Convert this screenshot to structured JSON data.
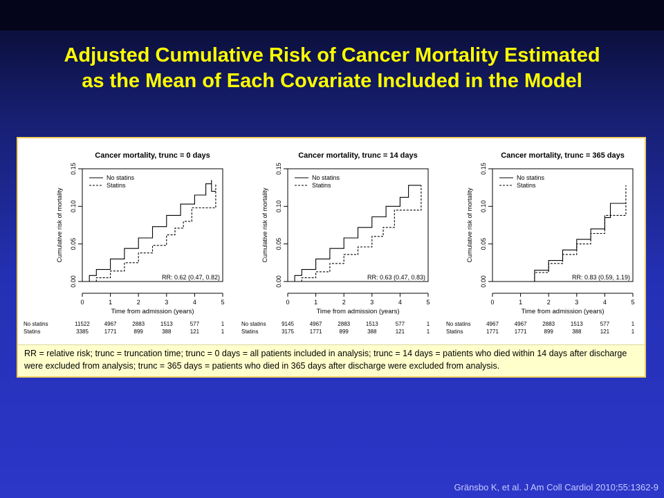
{
  "slide": {
    "title_line1": "Adjusted Cumulative Risk of Cancer Mortality Estimated",
    "title_line2": "as the Mean of Each Covariate Included in the Model",
    "footnote": "RR = relative risk; trunc = truncation time; trunc = 0 days = all patients included in analysis; trunc = 14 days = patients who died within 14 days after discharge were excluded from analysis; trunc = 365 days = patients who died in 365 days after discharge were excluded from analysis.",
    "citation": "Gränsbo K, et al. J Am Coll Cardiol 2010;55:1362-9",
    "colors": {
      "title": "#ffff00",
      "panel_border": "#f0d060",
      "footnote_bg": "#ffffcc"
    }
  },
  "chart_data": [
    {
      "type": "line",
      "title": "Cancer mortality, trunc = 0 days",
      "xlabel": "Time from admission (years)",
      "ylabel": "Cumulative risk of mortality",
      "xlim": [
        0,
        5
      ],
      "ylim": [
        0,
        0.15
      ],
      "xticks": [
        "0",
        "1",
        "2",
        "3",
        "4",
        "5"
      ],
      "yticks": [
        "0.00",
        "0.05",
        "0.10",
        "0.15"
      ],
      "legend": {
        "position": "top-left",
        "entries": [
          "No statins",
          "Statins"
        ]
      },
      "annotation": "RR: 0.62 (0.47, 0.82)",
      "series": [
        {
          "name": "No statins",
          "style": "solid",
          "x": [
            0,
            0.25,
            0.5,
            1,
            1.5,
            2,
            2.5,
            3,
            3.5,
            4,
            4.4,
            4.6,
            4.6,
            4.75
          ],
          "y": [
            0,
            0.008,
            0.016,
            0.03,
            0.044,
            0.058,
            0.073,
            0.088,
            0.103,
            0.115,
            0.13,
            0.135,
            0.12,
            0.12
          ]
        },
        {
          "name": "Statins",
          "style": "dashed",
          "x": [
            0,
            0.5,
            1,
            1.5,
            2,
            2.5,
            3,
            3.3,
            3.6,
            3.9,
            4.6,
            4.75,
            4.75
          ],
          "y": [
            0,
            0.005,
            0.014,
            0.025,
            0.038,
            0.048,
            0.062,
            0.071,
            0.08,
            0.098,
            0.098,
            0.098,
            0.13
          ]
        }
      ],
      "risk_table": {
        "rows": [
          {
            "label": "No statins",
            "values": [
              "11522",
              "4967",
              "2883",
              "1513",
              "577",
              "1"
            ]
          },
          {
            "label": "Statins",
            "values": [
              "3385",
              "1771",
              "899",
              "388",
              "121",
              "1"
            ]
          }
        ]
      }
    },
    {
      "type": "line",
      "title": "Cancer mortality, trunc = 14 days",
      "xlabel": "Time from admission (years)",
      "ylabel": "Cumulative risk of mortality",
      "xlim": [
        0,
        5
      ],
      "ylim": [
        0,
        0.15
      ],
      "xticks": [
        "0",
        "1",
        "2",
        "3",
        "4",
        "5"
      ],
      "yticks": [
        "0.00",
        "0.05",
        "0.10",
        "0.15"
      ],
      "legend": {
        "position": "top-left",
        "entries": [
          "No statins",
          "Statins"
        ]
      },
      "annotation": "RR: 0.63 (0.47, 0.83)",
      "series": [
        {
          "name": "No statins",
          "style": "solid",
          "x": [
            0,
            0.25,
            0.5,
            1,
            1.5,
            2,
            2.5,
            3,
            3.5,
            4,
            4.3,
            4.6,
            4.75
          ],
          "y": [
            0,
            0.008,
            0.016,
            0.03,
            0.044,
            0.058,
            0.072,
            0.086,
            0.1,
            0.112,
            0.128,
            0.128,
            0.128
          ]
        },
        {
          "name": "Statins",
          "style": "dashed",
          "x": [
            0,
            0.5,
            1,
            1.5,
            2,
            2.5,
            3,
            3.4,
            3.8,
            4.5,
            4.75,
            4.75
          ],
          "y": [
            0,
            0.005,
            0.013,
            0.024,
            0.036,
            0.046,
            0.06,
            0.072,
            0.095,
            0.095,
            0.095,
            0.128
          ]
        }
      ],
      "risk_table": {
        "rows": [
          {
            "label": "No statins",
            "values": [
              "9145",
              "4967",
              "2883",
              "1513",
              "577",
              "1"
            ]
          },
          {
            "label": "Statins",
            "values": [
              "3175",
              "1771",
              "899",
              "388",
              "121",
              "1"
            ]
          }
        ]
      }
    },
    {
      "type": "line",
      "title": "Cancer mortality, trunc = 365 days",
      "xlabel": "Time from admission (years)",
      "ylabel": "Cumulative risk of mortality",
      "xlim": [
        0,
        5
      ],
      "ylim": [
        0,
        0.15
      ],
      "xticks": [
        "0",
        "1",
        "2",
        "3",
        "4",
        "5"
      ],
      "yticks": [
        "0.00",
        "0.05",
        "0.10",
        "0.15"
      ],
      "legend": {
        "position": "top-left",
        "entries": [
          "No statins",
          "Statins"
        ]
      },
      "annotation": "RR: 0.83 (0.59, 1.19)",
      "series": [
        {
          "name": "No statins",
          "style": "solid",
          "x": [
            0,
            1,
            1.5,
            2,
            2.5,
            3,
            3.5,
            4,
            4.2,
            4.6,
            4.75
          ],
          "y": [
            0,
            0,
            0.015,
            0.028,
            0.042,
            0.056,
            0.07,
            0.085,
            0.104,
            0.104,
            0.104
          ]
        },
        {
          "name": "Statins",
          "style": "dashed",
          "x": [
            0,
            1,
            1.5,
            2,
            2.5,
            3,
            3.5,
            4,
            4.6,
            4.75,
            4.75
          ],
          "y": [
            0,
            0,
            0.012,
            0.024,
            0.036,
            0.05,
            0.064,
            0.088,
            0.088,
            0.088,
            0.128
          ]
        }
      ],
      "risk_table": {
        "rows": [
          {
            "label": "No statins",
            "values": [
              "4967",
              "4967",
              "2883",
              "1513",
              "577",
              "1"
            ]
          },
          {
            "label": "Statins",
            "values": [
              "1771",
              "1771",
              "899",
              "388",
              "121",
              "1"
            ]
          }
        ]
      }
    }
  ]
}
